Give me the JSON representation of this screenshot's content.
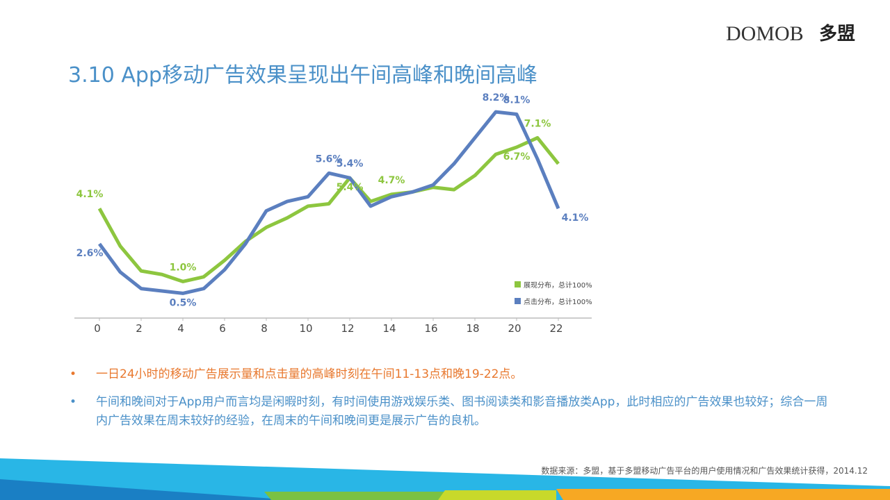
{
  "logo": {
    "brand": "DOMOB",
    "name": "多盟"
  },
  "chart_data": {
    "type": "line",
    "title": "3.10 App移动广告效果呈现出午间高峰和晚间高峰",
    "x": [
      0,
      1,
      2,
      3,
      4,
      5,
      6,
      7,
      8,
      9,
      10,
      11,
      12,
      13,
      14,
      15,
      16,
      17,
      18,
      19,
      20,
      21,
      22
    ],
    "xlim": [
      -1.2,
      23.6
    ],
    "xticks": [
      0,
      2,
      4,
      6,
      8,
      10,
      12,
      14,
      16,
      18,
      20,
      22
    ],
    "ylim": [
      -0.55,
      9
    ],
    "legend": "lower right",
    "series": [
      {
        "name": "展现分布，总计100%",
        "color": "#8dc63f",
        "values": [
          4.1,
          2.5,
          1.45,
          1.3,
          1.0,
          1.2,
          1.9,
          2.7,
          3.3,
          3.7,
          4.2,
          4.3,
          5.4,
          4.4,
          4.7,
          4.8,
          5.0,
          4.9,
          5.5,
          6.4,
          6.7,
          7.1,
          6.0
        ],
        "value_labels": [
          "4.1%",
          null,
          null,
          null,
          "1.0%",
          null,
          null,
          null,
          null,
          null,
          null,
          null,
          "5.4%",
          null,
          "4.7%",
          null,
          null,
          null,
          null,
          null,
          "6.7%",
          "7.1%",
          null
        ]
      },
      {
        "name": "点击分布，总计100%",
        "color": "#5b7fbf",
        "values": [
          2.6,
          1.4,
          0.7,
          0.6,
          0.5,
          0.7,
          1.5,
          2.6,
          4.0,
          4.4,
          4.6,
          5.6,
          5.4,
          4.2,
          4.6,
          4.8,
          5.1,
          6.0,
          7.1,
          8.2,
          8.1,
          6.2,
          4.1
        ],
        "value_labels": [
          "2.6%",
          null,
          null,
          null,
          "0.5%",
          null,
          null,
          null,
          null,
          null,
          null,
          "5.6%",
          "5.4%",
          null,
          null,
          null,
          null,
          null,
          null,
          "8.2%",
          "8.1%",
          null,
          "4.1%"
        ]
      }
    ]
  },
  "bullets": [
    "一日24小时的移动广告展示量和点击量的高峰时刻在午间11-13点和晚19-22点。",
    "午间和晚间对于App用户而言均是闲暇时刻，有时间使用游戏娱乐类、图书阅读类和影音播放类App，此时相应的广告效果也较好；综合一周内广告效果在周末较好的经验，在周末的午间和晚间更是展示广告的良机。"
  ],
  "source": "数据来源：多盟，基于多盟移动广告平台的用户使用情况和广告效果统计获得，2014.12"
}
